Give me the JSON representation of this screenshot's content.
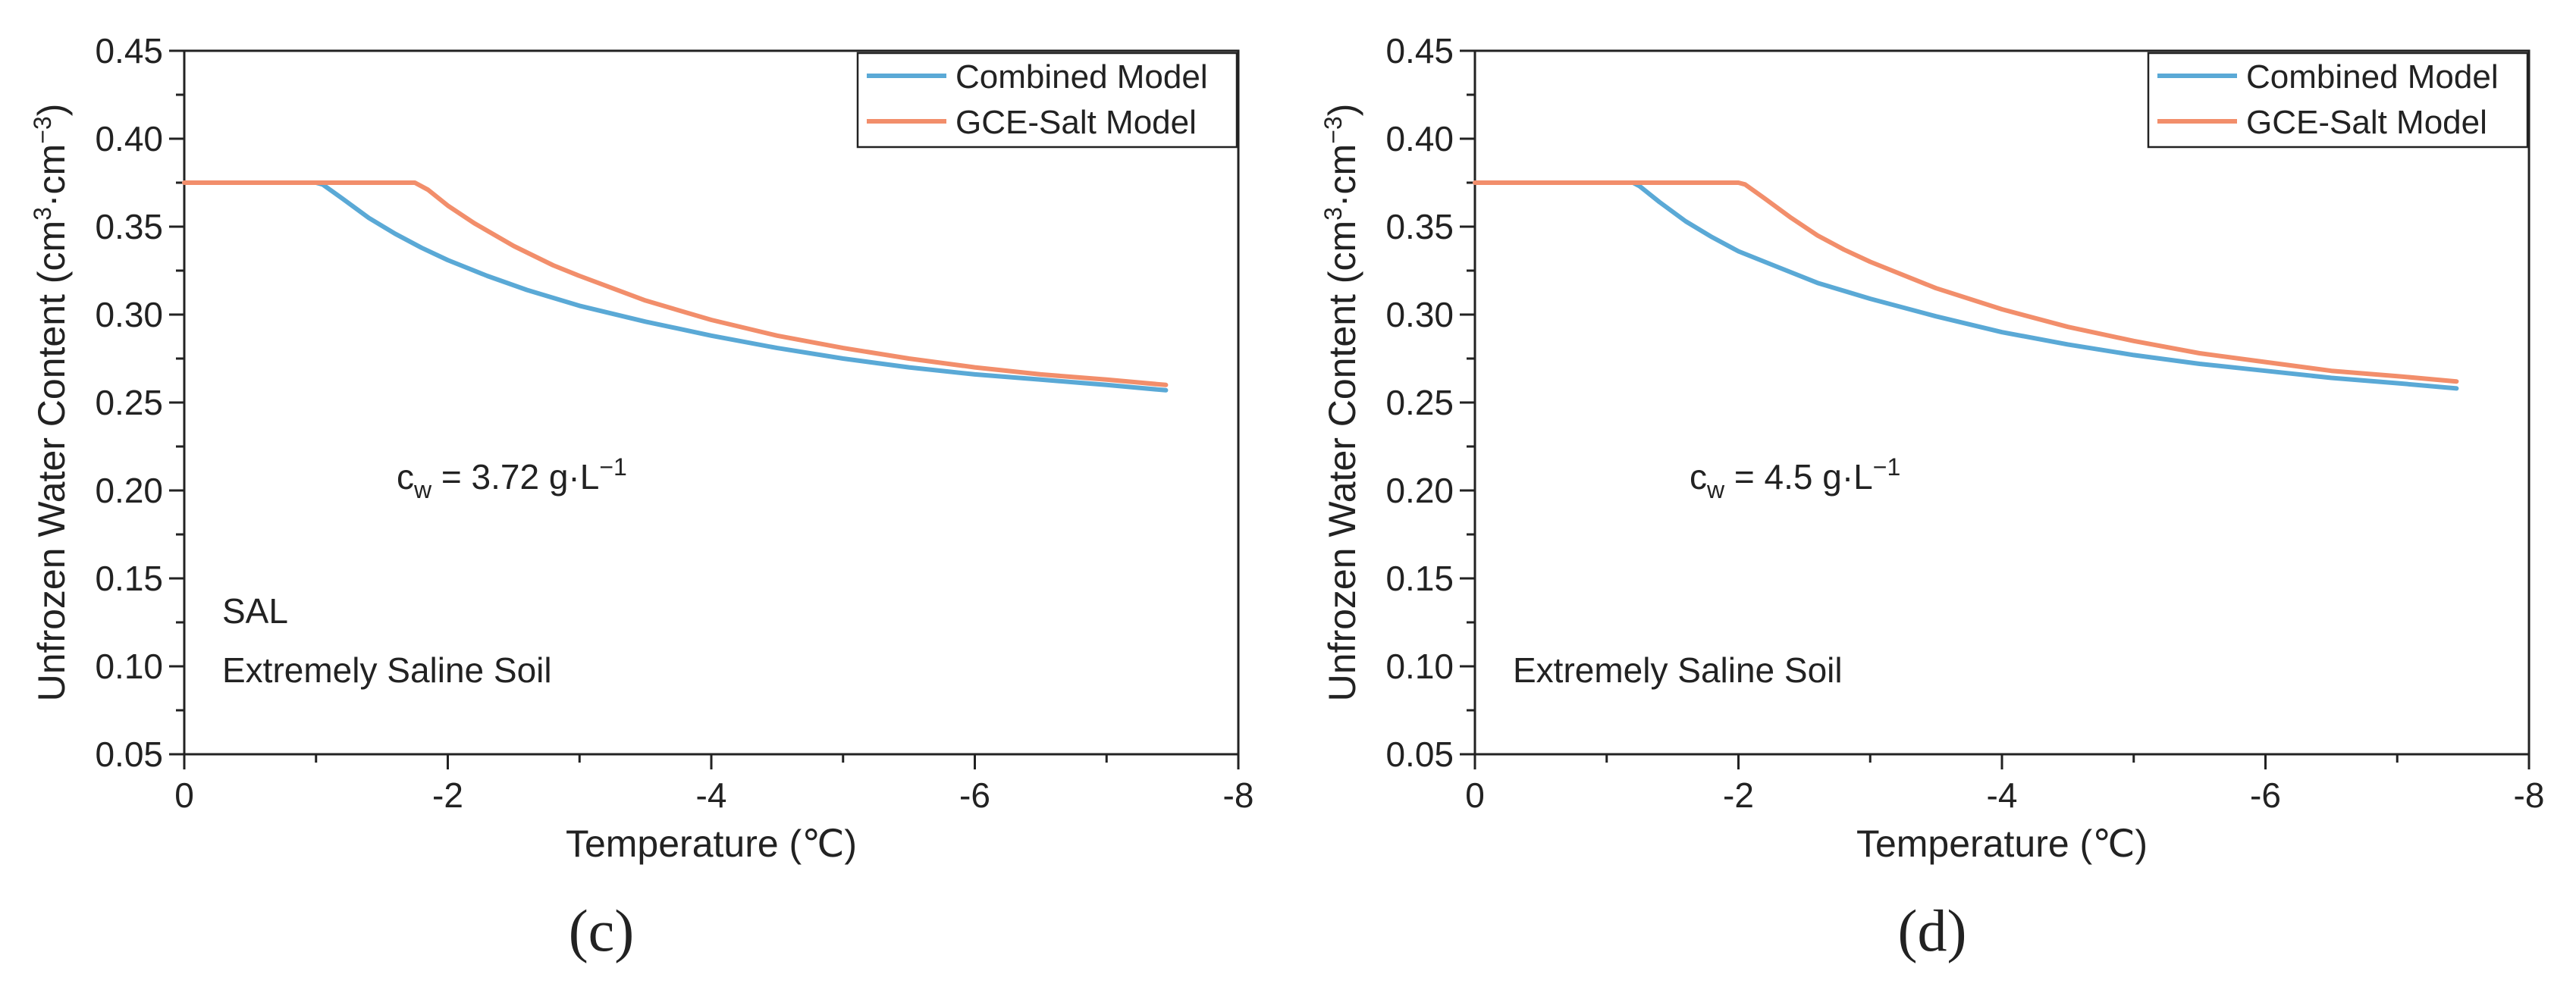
{
  "chart_data": [
    {
      "type": "line",
      "panel": "(c)",
      "xlabel": "Temperature (℃)",
      "ylabel": "Unfrozen Water Content (cm³·cm⁻³)",
      "xlim": [
        0,
        -8
      ],
      "ylim": [
        0.05,
        0.45
      ],
      "xticks": [
        "0",
        "-2",
        "-4",
        "-6",
        "-8"
      ],
      "yticks": [
        "0.05",
        "0.10",
        "0.15",
        "0.20",
        "0.25",
        "0.30",
        "0.35",
        "0.40",
        "0.45"
      ],
      "annotation": "cᴡ = 3.72 g·L⁻¹",
      "notes": [
        "SAL",
        "Extremely Saline Soil"
      ],
      "legend_position": "top-right",
      "series": [
        {
          "name": "Combined Model",
          "color": "#5aa9d6",
          "x": [
            0,
            -0.5,
            -1.0,
            -1.05,
            -1.2,
            -1.4,
            -1.6,
            -1.8,
            -2.0,
            -2.3,
            -2.6,
            -3.0,
            -3.5,
            -4.0,
            -4.5,
            -5.0,
            -5.5,
            -6.0,
            -6.5,
            -7.0,
            -7.45
          ],
          "y": [
            0.375,
            0.375,
            0.375,
            0.374,
            0.366,
            0.355,
            0.346,
            0.338,
            0.331,
            0.322,
            0.314,
            0.305,
            0.296,
            0.288,
            0.281,
            0.275,
            0.27,
            0.266,
            0.263,
            0.26,
            0.257
          ]
        },
        {
          "name": "GCE-Salt Model",
          "color": "#f28e6b",
          "x": [
            0,
            -0.5,
            -1.0,
            -1.5,
            -1.75,
            -1.85,
            -2.0,
            -2.2,
            -2.5,
            -2.8,
            -3.0,
            -3.5,
            -4.0,
            -4.5,
            -5.0,
            -5.5,
            -6.0,
            -6.5,
            -7.0,
            -7.45
          ],
          "y": [
            0.375,
            0.375,
            0.375,
            0.375,
            0.375,
            0.371,
            0.362,
            0.352,
            0.339,
            0.328,
            0.322,
            0.308,
            0.297,
            0.288,
            0.281,
            0.275,
            0.27,
            0.266,
            0.263,
            0.26
          ]
        }
      ]
    },
    {
      "type": "line",
      "panel": "(d)",
      "xlabel": "Temperature (℃)",
      "ylabel": "Unfrozen Water Content (cm³·cm⁻³)",
      "xlim": [
        0,
        -8
      ],
      "ylim": [
        0.05,
        0.45
      ],
      "xticks": [
        "0",
        "-2",
        "-4",
        "-6",
        "-8"
      ],
      "yticks": [
        "0.05",
        "0.10",
        "0.15",
        "0.20",
        "0.25",
        "0.30",
        "0.35",
        "0.40",
        "0.45"
      ],
      "annotation": "cᴡ = 4.5 g·L⁻¹",
      "notes": [
        "Extremely Saline Soil"
      ],
      "legend_position": "top-right",
      "series": [
        {
          "name": "Combined Model",
          "color": "#5aa9d6",
          "x": [
            0,
            -0.5,
            -1.0,
            -1.2,
            -1.25,
            -1.4,
            -1.6,
            -1.8,
            -2.0,
            -2.3,
            -2.6,
            -3.0,
            -3.5,
            -4.0,
            -4.5,
            -5.0,
            -5.5,
            -6.0,
            -6.5,
            -7.0,
            -7.45
          ],
          "y": [
            0.375,
            0.375,
            0.375,
            0.375,
            0.373,
            0.364,
            0.353,
            0.344,
            0.336,
            0.327,
            0.318,
            0.309,
            0.299,
            0.29,
            0.283,
            0.277,
            0.272,
            0.268,
            0.264,
            0.261,
            0.258
          ]
        },
        {
          "name": "GCE-Salt Model",
          "color": "#f28e6b",
          "x": [
            0,
            -0.5,
            -1.0,
            -1.5,
            -2.0,
            -2.05,
            -2.2,
            -2.4,
            -2.6,
            -2.8,
            -3.0,
            -3.5,
            -4.0,
            -4.5,
            -5.0,
            -5.5,
            -6.0,
            -6.5,
            -7.0,
            -7.45
          ],
          "y": [
            0.375,
            0.375,
            0.375,
            0.375,
            0.375,
            0.374,
            0.366,
            0.355,
            0.345,
            0.337,
            0.33,
            0.315,
            0.303,
            0.293,
            0.285,
            0.278,
            0.273,
            0.268,
            0.265,
            0.262
          ]
        }
      ]
    }
  ]
}
